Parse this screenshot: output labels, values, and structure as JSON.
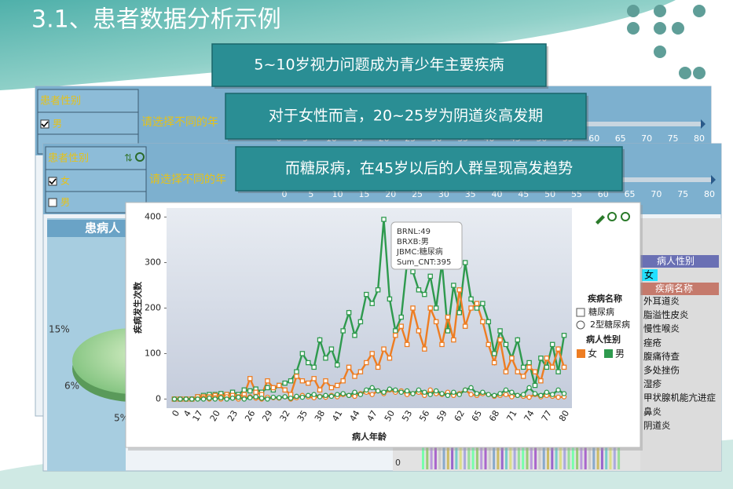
{
  "title": "3.1、患者数据分析示例",
  "callouts": [
    "5~10岁视力问题成为青少年主要疾病",
    "对于女性而言，20~25岁为阴道炎高发期",
    "而糖尿病，在45岁以后的人群呈现高发趋势"
  ],
  "panel_a": {
    "filter_title": "患者性别",
    "options": [
      "男"
    ],
    "prompt": "请选择不同的年",
    "slider_ticks": [
      0,
      5,
      10,
      15,
      20,
      25,
      30,
      35,
      40,
      45,
      50,
      55,
      60,
      65,
      70,
      75,
      80
    ]
  },
  "panel_b": {
    "filter_title": "患者性别",
    "options": [
      "女",
      "男"
    ],
    "prompt": "请选择不同的年",
    "slider_ticks": [
      0,
      5,
      10,
      15,
      20,
      25,
      30,
      35,
      40,
      45,
      50,
      55,
      60,
      65,
      70,
      75,
      80
    ]
  },
  "pie_panel": {
    "title": "患病人",
    "labels": [
      "15%",
      "6%",
      "5%"
    ]
  },
  "right_panel": {
    "sex_title": "病人性别",
    "sex_selected": "女",
    "disease_title": "疾病名称",
    "diseases": [
      "外耳道炎",
      "脂溢性皮炎",
      "慢性喉炎",
      "痤疮",
      "腹痛待查",
      "多处挫伤",
      "湿疹",
      "甲状腺机能亢进症",
      "鼻炎",
      "阴道炎"
    ]
  },
  "bottom_strip": {
    "label": "0"
  },
  "chart_data": {
    "type": "line",
    "x_label": "病人年龄",
    "y_label": "疾病发生次数",
    "categories": [
      "0",
      null,
      "4",
      null,
      "17",
      null,
      null,
      "20",
      null,
      null,
      "23",
      null,
      null,
      "26",
      null,
      null,
      "29",
      null,
      null,
      "32",
      null,
      null,
      "35",
      null,
      null,
      "38",
      null,
      null,
      "41",
      null,
      null,
      "44",
      null,
      null,
      "47",
      null,
      null,
      "50",
      null,
      null,
      "53",
      null,
      null,
      "56",
      null,
      null,
      "59",
      null,
      null,
      "62",
      null,
      null,
      "65",
      null,
      null,
      "68",
      null,
      null,
      "71",
      null,
      null,
      "74",
      null,
      null,
      "77",
      null,
      null,
      "80"
    ],
    "ylim": [
      -20,
      420
    ],
    "yticks": [
      0,
      100,
      200,
      300,
      400
    ],
    "grid": false,
    "series": [
      {
        "color": "#2e9a4e",
        "shape": "square",
        "values": [
          0,
          0,
          0,
          0,
          5,
          8,
          10,
          10,
          12,
          10,
          15,
          10,
          20,
          18,
          22,
          15,
          25,
          20,
          30,
          35,
          40,
          60,
          100,
          80,
          70,
          130,
          90,
          110,
          75,
          150,
          190,
          140,
          170,
          230,
          210,
          240,
          395,
          220,
          150,
          180,
          300,
          280,
          240,
          230,
          270,
          200,
          300,
          150,
          250,
          190,
          300,
          220,
          200,
          210,
          170,
          100,
          150,
          120,
          90,
          130,
          70,
          80,
          30,
          90,
          70,
          120,
          60,
          140
        ]
      },
      {
        "color": "#ee7d22",
        "shape": "square",
        "values": [
          0,
          0,
          0,
          0,
          5,
          5,
          5,
          8,
          5,
          10,
          8,
          5,
          10,
          45,
          15,
          10,
          40,
          25,
          30,
          20,
          10,
          50,
          40,
          35,
          45,
          20,
          40,
          25,
          30,
          40,
          70,
          50,
          60,
          80,
          100,
          70,
          110,
          90,
          140,
          160,
          120,
          200,
          150,
          110,
          200,
          170,
          120,
          180,
          130,
          240,
          160,
          200,
          210,
          170,
          120,
          80,
          130,
          60,
          90,
          60,
          50,
          70,
          60,
          40,
          90,
          70,
          110,
          70
        ]
      },
      {
        "color": "#ee7d22",
        "shape": "circle",
        "values": [
          0,
          0,
          0,
          0,
          0,
          2,
          0,
          3,
          0,
          5,
          2,
          0,
          3,
          5,
          2,
          0,
          4,
          3,
          2,
          5,
          0,
          3,
          8,
          5,
          3,
          6,
          4,
          8,
          5,
          10,
          8,
          6,
          12,
          15,
          10,
          18,
          12,
          20,
          15,
          18,
          10,
          12,
          15,
          8,
          20,
          12,
          10,
          15,
          8,
          12,
          20,
          10,
          8,
          12,
          10,
          6,
          8,
          10,
          5,
          8,
          6,
          4,
          10,
          5,
          8,
          6,
          4,
          5
        ]
      },
      {
        "color": "#2e9a4e",
        "shape": "circle",
        "values": [
          0,
          0,
          0,
          0,
          0,
          0,
          2,
          0,
          3,
          0,
          2,
          4,
          0,
          3,
          5,
          2,
          0,
          4,
          3,
          5,
          2,
          6,
          4,
          8,
          10,
          5,
          8,
          6,
          10,
          12,
          8,
          15,
          10,
          20,
          25,
          18,
          15,
          22,
          20,
          15,
          18,
          12,
          20,
          15,
          10,
          18,
          12,
          8,
          15,
          10,
          20,
          25,
          12,
          15,
          10,
          8,
          12,
          20,
          15,
          8,
          10,
          25,
          12,
          8,
          15,
          10,
          20,
          12
        ]
      }
    ],
    "tooltip": [
      "BRNL:49",
      "BRXB:男",
      "JBMC:糖尿病",
      "Sum_CNT:395"
    ],
    "legend": {
      "shape_title": "疾病名称",
      "shapes": [
        "糖尿病",
        "2型糖尿病"
      ],
      "color_title": "病人性别",
      "colors": [
        "女",
        "男"
      ],
      "color_values": [
        "#ee7d22",
        "#2e9a4e"
      ]
    }
  }
}
